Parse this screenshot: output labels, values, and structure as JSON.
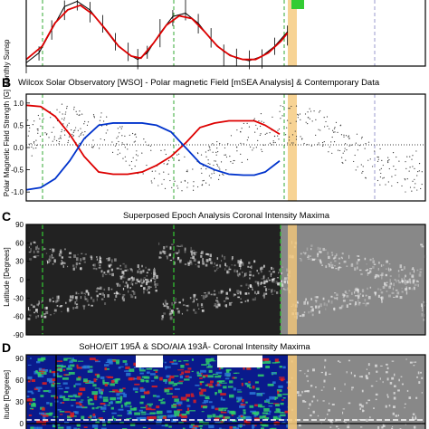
{
  "chart_data": [
    {
      "id": "A",
      "type": "line",
      "panel_label": "",
      "title": "",
      "ylabel": "Monthly Sunsp",
      "x_range": [
        0,
        100
      ],
      "y_range": [
        0,
        100
      ],
      "series": [
        {
          "values": [
            [
              0,
              5
            ],
            [
              4,
              20
            ],
            [
              8,
              55
            ],
            [
              12,
              90
            ],
            [
              16,
              98
            ],
            [
              20,
              85
            ],
            [
              24,
              60
            ],
            [
              28,
              35
            ],
            [
              32,
              18
            ],
            [
              35,
              10
            ],
            [
              38,
              20
            ],
            [
              42,
              50
            ],
            [
              46,
              75
            ],
            [
              50,
              80
            ],
            [
              54,
              65
            ],
            [
              58,
              40
            ],
            [
              62,
              22
            ],
            [
              66,
              12
            ],
            [
              70,
              8
            ],
            [
              74,
              15
            ],
            [
              78,
              30
            ],
            [
              82,
              52
            ]
          ]
        },
        {
          "values": [
            [
              0,
              10
            ],
            [
              5,
              30
            ],
            [
              9,
              65
            ],
            [
              13,
              85
            ],
            [
              17,
              92
            ],
            [
              21,
              78
            ],
            [
              25,
              55
            ],
            [
              29,
              30
            ],
            [
              33,
              15
            ],
            [
              36,
              12
            ],
            [
              40,
              35
            ],
            [
              44,
              62
            ],
            [
              48,
              76
            ],
            [
              52,
              72
            ],
            [
              56,
              52
            ],
            [
              60,
              30
            ],
            [
              64,
              16
            ],
            [
              68,
              10
            ],
            [
              72,
              10
            ],
            [
              76,
              20
            ],
            [
              80,
              38
            ],
            [
              82,
              50
            ]
          ]
        }
      ],
      "colors": {
        "observed": "#000000",
        "smoothed": "#dd0000",
        "highlight": "#f5c879",
        "marker": "#33cc33"
      }
    },
    {
      "id": "B",
      "type": "line",
      "panel_label": "B",
      "title": "Wilcox Solar Observatory [WSO] - Polar magnetic Field [mSEA Analysis] & Contemporary Data",
      "ylabel": "Polar Magnetic Field Strength [G]",
      "yticks": [
        "1.0",
        "0.5",
        "0.0",
        "-0.5",
        "-1.0"
      ],
      "y_range": [
        -1.2,
        1.2
      ],
      "x_range": [
        0,
        100
      ],
      "series": [
        {
          "values": [
            [
              0,
              0.95
            ],
            [
              4,
              0.92
            ],
            [
              8,
              0.7
            ],
            [
              12,
              0.3
            ],
            [
              16,
              -0.2
            ],
            [
              20,
              -0.55
            ],
            [
              24,
              -0.6
            ],
            [
              28,
              -0.6
            ],
            [
              32,
              -0.55
            ],
            [
              36,
              -0.4
            ],
            [
              40,
              -0.2
            ],
            [
              44,
              0.1
            ],
            [
              48,
              0.45
            ],
            [
              52,
              0.55
            ],
            [
              56,
              0.6
            ],
            [
              60,
              0.6
            ],
            [
              63,
              0.6
            ],
            [
              66,
              0.5
            ],
            [
              70,
              0.3
            ]
          ]
        },
        {
          "values": [
            [
              0,
              -0.95
            ],
            [
              4,
              -0.9
            ],
            [
              8,
              -0.7
            ],
            [
              12,
              -0.3
            ],
            [
              16,
              0.2
            ],
            [
              20,
              0.5
            ],
            [
              24,
              0.55
            ],
            [
              28,
              0.55
            ],
            [
              32,
              0.55
            ],
            [
              36,
              0.5
            ],
            [
              40,
              0.35
            ],
            [
              44,
              0.0
            ],
            [
              48,
              -0.35
            ],
            [
              52,
              -0.5
            ],
            [
              56,
              -0.6
            ],
            [
              60,
              -0.62
            ],
            [
              63,
              -0.62
            ],
            [
              66,
              -0.55
            ],
            [
              70,
              -0.3
            ]
          ]
        }
      ],
      "colors": {
        "north": "#dd0000",
        "south": "#0033cc",
        "highlight": "#f5c879"
      }
    },
    {
      "id": "C",
      "type": "heatmap",
      "panel_label": "C",
      "title": "Superposed Epoch Analysis Coronal Intensity Maxima",
      "ylabel": "Latitude [Degrees]",
      "yticks": [
        "90",
        "60",
        "30",
        "0",
        "-30",
        "-60",
        "-90"
      ],
      "y_range": [
        -90,
        90
      ],
      "colors": {
        "background": "#222222",
        "feature": "#bbbbbb",
        "predicted": "#888888",
        "highlight": "#f5c879"
      }
    },
    {
      "id": "D",
      "type": "heatmap",
      "panel_label": "D",
      "title": "SoHO/EIT 195Å & SDO/AIA 193Å- Coronal Intensity Maxima",
      "ylabel": "itude [Degrees]",
      "yticks": [
        "90",
        "60",
        "30",
        "0"
      ],
      "y_range": [
        -10,
        95
      ],
      "colors": {
        "low": "#0a1a8c",
        "mid": "#2fd06a",
        "high": "#e02020",
        "predicted": "#888888",
        "highlight": "#f5c879"
      }
    }
  ]
}
